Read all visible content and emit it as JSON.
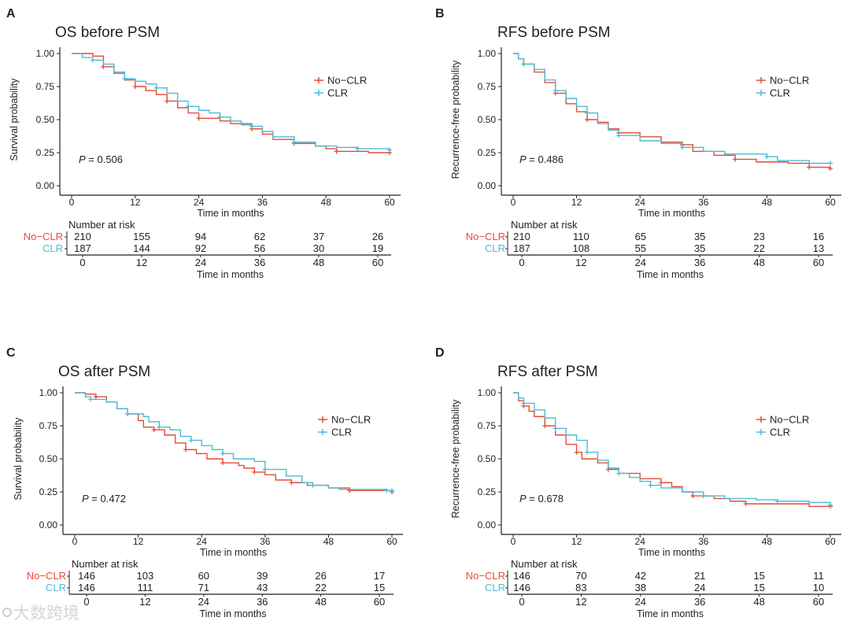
{
  "colors": {
    "No-CLR": "#E64B35",
    "CLR": "#4DBBD5",
    "axis": "#222222"
  },
  "watermark": "大数跨境",
  "chart_data": [
    {
      "type": "line",
      "panel": "A",
      "title": "OS before PSM",
      "xlabel": "Time in months",
      "ylabel": "Survival probability",
      "xlim": [
        0,
        60
      ],
      "ylim": [
        0,
        1
      ],
      "xticks": [
        "0",
        "12",
        "24",
        "36",
        "48",
        "60"
      ],
      "yticks": [
        "0.00",
        "0.25",
        "0.50",
        "0.75",
        "1.00"
      ],
      "legend": [
        "No−CLR",
        "CLR"
      ],
      "legend_position": "right",
      "p_label": "P",
      "p_value": " = 0.506",
      "series": [
        {
          "name": "No-CLR",
          "points": [
            [
              0,
              1
            ],
            [
              4,
              0.98
            ],
            [
              6,
              0.9
            ],
            [
              8,
              0.85
            ],
            [
              10,
              0.8
            ],
            [
              12,
              0.75
            ],
            [
              14,
              0.72
            ],
            [
              16,
              0.69
            ],
            [
              18,
              0.64
            ],
            [
              20,
              0.59
            ],
            [
              22,
              0.55
            ],
            [
              24,
              0.51
            ],
            [
              28,
              0.49
            ],
            [
              30,
              0.47
            ],
            [
              34,
              0.43
            ],
            [
              36,
              0.39
            ],
            [
              38,
              0.35
            ],
            [
              42,
              0.32
            ],
            [
              46,
              0.3
            ],
            [
              48,
              0.28
            ],
            [
              50,
              0.26
            ],
            [
              56,
              0.25
            ],
            [
              60,
              0.25
            ]
          ]
        },
        {
          "name": "CLR",
          "points": [
            [
              0,
              1
            ],
            [
              2,
              0.97
            ],
            [
              4,
              0.95
            ],
            [
              6,
              0.92
            ],
            [
              8,
              0.86
            ],
            [
              10,
              0.81
            ],
            [
              12,
              0.79
            ],
            [
              14,
              0.77
            ],
            [
              16,
              0.74
            ],
            [
              18,
              0.7
            ],
            [
              20,
              0.64
            ],
            [
              22,
              0.6
            ],
            [
              24,
              0.57
            ],
            [
              26,
              0.55
            ],
            [
              28,
              0.52
            ],
            [
              30,
              0.49
            ],
            [
              32,
              0.46
            ],
            [
              34,
              0.45
            ],
            [
              36,
              0.41
            ],
            [
              38,
              0.37
            ],
            [
              42,
              0.33
            ],
            [
              46,
              0.3
            ],
            [
              50,
              0.29
            ],
            [
              54,
              0.28
            ],
            [
              60,
              0.27
            ]
          ]
        }
      ],
      "risk_table": {
        "title": "Number at risk",
        "xlabel": "Time in months",
        "times": [
          "0",
          "12",
          "24",
          "36",
          "48",
          "60"
        ],
        "rows": [
          {
            "name": "No−CLR",
            "values": [
              "210",
              "155",
              "94",
              "62",
              "37",
              "26"
            ]
          },
          {
            "name": "CLR",
            "values": [
              "187",
              "144",
              "92",
              "56",
              "30",
              "19"
            ]
          }
        ]
      }
    },
    {
      "type": "line",
      "panel": "B",
      "title": "RFS before PSM",
      "xlabel": "Time in months",
      "ylabel": "Recurrence-free probability",
      "xlim": [
        0,
        60
      ],
      "ylim": [
        0,
        1
      ],
      "xticks": [
        "0",
        "12",
        "24",
        "36",
        "48",
        "60"
      ],
      "yticks": [
        "0.00",
        "0.25",
        "0.50",
        "0.75",
        "1.00"
      ],
      "legend": [
        "No−CLR",
        "CLR"
      ],
      "legend_position": "right",
      "p_label": "P",
      "p_value": " = 0.486",
      "series": [
        {
          "name": "No-CLR",
          "points": [
            [
              0,
              1
            ],
            [
              1,
              0.96
            ],
            [
              2,
              0.92
            ],
            [
              4,
              0.86
            ],
            [
              6,
              0.78
            ],
            [
              8,
              0.7
            ],
            [
              10,
              0.62
            ],
            [
              12,
              0.56
            ],
            [
              14,
              0.5
            ],
            [
              16,
              0.48
            ],
            [
              18,
              0.43
            ],
            [
              20,
              0.4
            ],
            [
              24,
              0.37
            ],
            [
              28,
              0.33
            ],
            [
              32,
              0.31
            ],
            [
              34,
              0.26
            ],
            [
              38,
              0.23
            ],
            [
              42,
              0.2
            ],
            [
              46,
              0.18
            ],
            [
              52,
              0.17
            ],
            [
              56,
              0.14
            ],
            [
              60,
              0.13
            ]
          ]
        },
        {
          "name": "CLR",
          "points": [
            [
              0,
              1
            ],
            [
              1,
              0.96
            ],
            [
              2,
              0.92
            ],
            [
              4,
              0.88
            ],
            [
              6,
              0.8
            ],
            [
              8,
              0.72
            ],
            [
              10,
              0.66
            ],
            [
              12,
              0.6
            ],
            [
              14,
              0.55
            ],
            [
              16,
              0.47
            ],
            [
              18,
              0.42
            ],
            [
              20,
              0.38
            ],
            [
              24,
              0.34
            ],
            [
              28,
              0.32
            ],
            [
              32,
              0.29
            ],
            [
              36,
              0.26
            ],
            [
              40,
              0.24
            ],
            [
              48,
              0.22
            ],
            [
              50,
              0.19
            ],
            [
              56,
              0.17
            ],
            [
              60,
              0.17
            ]
          ]
        }
      ],
      "risk_table": {
        "title": "Number at risk",
        "xlabel": "Time in months",
        "times": [
          "0",
          "12",
          "24",
          "36",
          "48",
          "60"
        ],
        "rows": [
          {
            "name": "No−CLR",
            "values": [
              "210",
              "110",
              "65",
              "35",
              "23",
              "16"
            ]
          },
          {
            "name": "CLR",
            "values": [
              "187",
              "108",
              "55",
              "35",
              "22",
              "13"
            ]
          }
        ]
      }
    },
    {
      "type": "line",
      "panel": "C",
      "title": "OS after PSM",
      "xlabel": "Time in months",
      "ylabel": "Survival probability",
      "xlim": [
        0,
        60
      ],
      "ylim": [
        0,
        1
      ],
      "xticks": [
        "0",
        "12",
        "24",
        "36",
        "48",
        "60"
      ],
      "yticks": [
        "0.00",
        "0.25",
        "0.50",
        "0.75",
        "1.00"
      ],
      "legend": [
        "No−CLR",
        "CLR"
      ],
      "legend_position": "right",
      "p_label": "P",
      "p_value": " = 0.472",
      "series": [
        {
          "name": "No-CLR",
          "points": [
            [
              0,
              1
            ],
            [
              2,
              0.99
            ],
            [
              4,
              0.97
            ],
            [
              6,
              0.93
            ],
            [
              8,
              0.88
            ],
            [
              10,
              0.84
            ],
            [
              12,
              0.79
            ],
            [
              13,
              0.74
            ],
            [
              15,
              0.72
            ],
            [
              17,
              0.68
            ],
            [
              19,
              0.62
            ],
            [
              21,
              0.57
            ],
            [
              23,
              0.54
            ],
            [
              25,
              0.5
            ],
            [
              28,
              0.47
            ],
            [
              31,
              0.45
            ],
            [
              32,
              0.43
            ],
            [
              34,
              0.4
            ],
            [
              36,
              0.38
            ],
            [
              38,
              0.34
            ],
            [
              41,
              0.32
            ],
            [
              44,
              0.3
            ],
            [
              48,
              0.28
            ],
            [
              52,
              0.26
            ],
            [
              60,
              0.25
            ]
          ]
        },
        {
          "name": "CLR",
          "points": [
            [
              0,
              1
            ],
            [
              2,
              0.97
            ],
            [
              3,
              0.95
            ],
            [
              6,
              0.93
            ],
            [
              8,
              0.88
            ],
            [
              10,
              0.84
            ],
            [
              13,
              0.82
            ],
            [
              14,
              0.78
            ],
            [
              16,
              0.74
            ],
            [
              18,
              0.72
            ],
            [
              20,
              0.67
            ],
            [
              22,
              0.64
            ],
            [
              24,
              0.6
            ],
            [
              26,
              0.57
            ],
            [
              28,
              0.54
            ],
            [
              30,
              0.5
            ],
            [
              34,
              0.48
            ],
            [
              36,
              0.42
            ],
            [
              40,
              0.37
            ],
            [
              43,
              0.32
            ],
            [
              45,
              0.3
            ],
            [
              48,
              0.28
            ],
            [
              50,
              0.27
            ],
            [
              59,
              0.26
            ],
            [
              60,
              0.26
            ]
          ]
        }
      ],
      "risk_table": {
        "title": "Number at risk",
        "xlabel": "Time in months",
        "times": [
          "0",
          "12",
          "24",
          "36",
          "48",
          "60"
        ],
        "rows": [
          {
            "name": "No−CLR",
            "values": [
              "146",
              "103",
              "60",
              "39",
              "26",
              "17"
            ]
          },
          {
            "name": "CLR",
            "values": [
              "146",
              "111",
              "71",
              "43",
              "22",
              "15"
            ]
          }
        ]
      }
    },
    {
      "type": "line",
      "panel": "D",
      "title": "RFS after PSM",
      "xlabel": "Time in months",
      "ylabel": "Recurrence-free probability",
      "xlim": [
        0,
        60
      ],
      "ylim": [
        0,
        1
      ],
      "xticks": [
        "0",
        "12",
        "24",
        "36",
        "48",
        "60"
      ],
      "yticks": [
        "0.00",
        "0.25",
        "0.50",
        "0.75",
        "1.00"
      ],
      "legend": [
        "No−CLR",
        "CLR"
      ],
      "legend_position": "right",
      "p_label": "P",
      "p_value": " = 0.678",
      "series": [
        {
          "name": "No-CLR",
          "points": [
            [
              0,
              1
            ],
            [
              1,
              0.94
            ],
            [
              2,
              0.9
            ],
            [
              3,
              0.86
            ],
            [
              4,
              0.82
            ],
            [
              6,
              0.75
            ],
            [
              8,
              0.68
            ],
            [
              10,
              0.61
            ],
            [
              12,
              0.55
            ],
            [
              13,
              0.5
            ],
            [
              16,
              0.47
            ],
            [
              18,
              0.42
            ],
            [
              20,
              0.39
            ],
            [
              24,
              0.35
            ],
            [
              28,
              0.32
            ],
            [
              30,
              0.29
            ],
            [
              32,
              0.25
            ],
            [
              34,
              0.22
            ],
            [
              38,
              0.2
            ],
            [
              41,
              0.18
            ],
            [
              44,
              0.16
            ],
            [
              52,
              0.16
            ],
            [
              56,
              0.14
            ],
            [
              60,
              0.14
            ]
          ]
        },
        {
          "name": "CLR",
          "points": [
            [
              0,
              1
            ],
            [
              1,
              0.96
            ],
            [
              2,
              0.92
            ],
            [
              4,
              0.87
            ],
            [
              6,
              0.81
            ],
            [
              8,
              0.73
            ],
            [
              10,
              0.68
            ],
            [
              12,
              0.64
            ],
            [
              14,
              0.55
            ],
            [
              16,
              0.49
            ],
            [
              18,
              0.43
            ],
            [
              20,
              0.39
            ],
            [
              22,
              0.36
            ],
            [
              24,
              0.33
            ],
            [
              26,
              0.3
            ],
            [
              28,
              0.28
            ],
            [
              32,
              0.25
            ],
            [
              36,
              0.22
            ],
            [
              40,
              0.2
            ],
            [
              46,
              0.19
            ],
            [
              50,
              0.18
            ],
            [
              56,
              0.17
            ],
            [
              60,
              0.15
            ]
          ]
        }
      ],
      "risk_table": {
        "title": "Number at risk",
        "xlabel": "Time in months",
        "times": [
          "0",
          "12",
          "24",
          "36",
          "48",
          "60"
        ],
        "rows": [
          {
            "name": "No−CLR",
            "values": [
              "146",
              "70",
              "42",
              "21",
              "15",
              "11"
            ]
          },
          {
            "name": "CLR",
            "values": [
              "146",
              "83",
              "38",
              "24",
              "15",
              "10"
            ]
          }
        ]
      }
    }
  ]
}
